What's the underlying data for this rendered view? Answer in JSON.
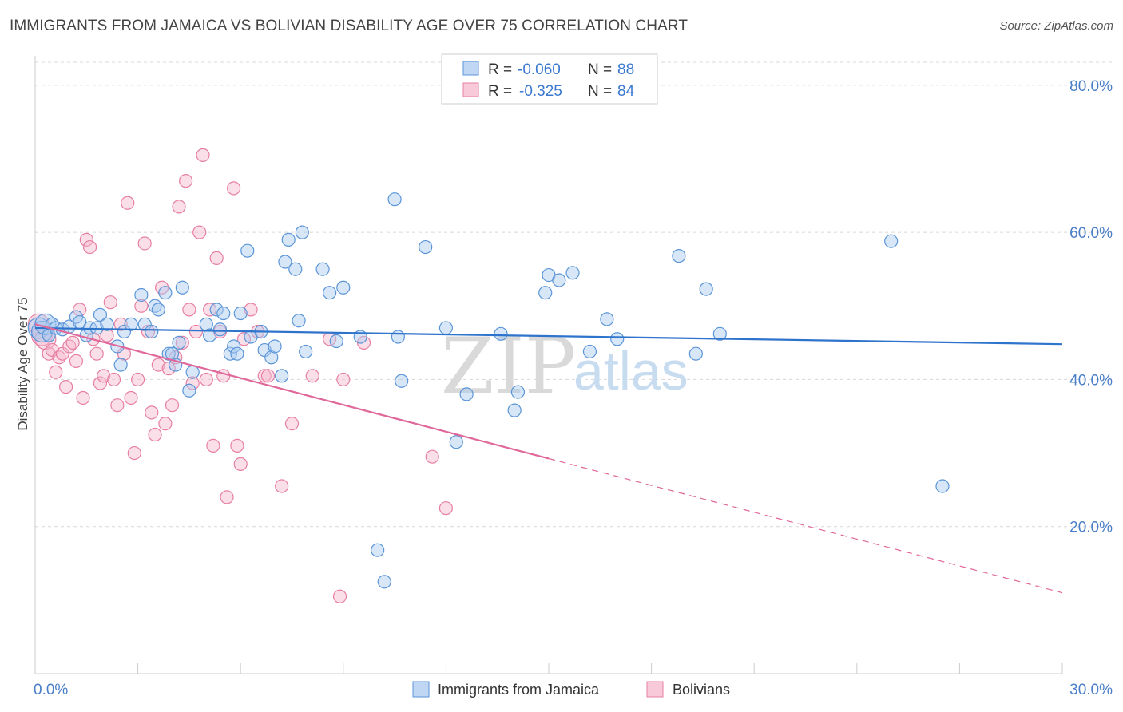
{
  "title": "IMMIGRANTS FROM JAMAICA VS BOLIVIAN DISABILITY AGE OVER 75 CORRELATION CHART",
  "source": "Source: ZipAtlas.com",
  "watermark": {
    "zip": "ZIP",
    "atlas": "atlas"
  },
  "legend": {
    "rows": [
      {
        "r_label": "R =",
        "r_value": "-0.060",
        "n_label": "N =",
        "n_value": "88"
      },
      {
        "r_label": "R =",
        "r_value": "-0.325",
        "n_label": "N =",
        "n_value": "84"
      }
    ]
  },
  "colors": {
    "blue_fill": "#a9c9ef",
    "blue_stroke": "#5b95d8",
    "blue_line": "#2f74cc",
    "pink_fill": "#f6b8cc",
    "pink_stroke": "#e77fa3",
    "pink_line": "#e0679a",
    "grid": "#d8d8d8",
    "tick_text": "#4a7fc8"
  },
  "chart_data": {
    "type": "scatter",
    "title": "IMMIGRANTS FROM JAMAICA VS BOLIVIAN DISABILITY AGE OVER 75 CORRELATION CHART",
    "xlabel": "",
    "ylabel": "Disability Age Over 75",
    "xlim": [
      0,
      30
    ],
    "ylim": [
      0,
      84
    ],
    "x_tick_labels": [
      "0.0%",
      "30.0%"
    ],
    "y_ticks": [
      20,
      40,
      60,
      80
    ],
    "y_tick_labels": [
      "20.0%",
      "40.0%",
      "60.0%",
      "80.0%"
    ],
    "grid": true,
    "legend_position": "top-center",
    "series": [
      {
        "name": "Immigrants from Jamaica",
        "color": "#5b95d8",
        "trend": {
          "x": [
            0,
            30
          ],
          "y": [
            47.0,
            44.8
          ],
          "solid_to": 30
        },
        "points": [
          [
            0.1,
            47.0
          ],
          [
            0.2,
            46.5
          ],
          [
            0.3,
            47.5
          ],
          [
            0.4,
            46.0
          ],
          [
            0.5,
            47.5
          ],
          [
            0.6,
            47.0
          ],
          [
            0.8,
            46.8
          ],
          [
            1.0,
            47.2
          ],
          [
            1.2,
            48.5
          ],
          [
            1.3,
            47.8
          ],
          [
            1.5,
            46.0
          ],
          [
            1.6,
            47.0
          ],
          [
            1.8,
            47.0
          ],
          [
            1.9,
            48.8
          ],
          [
            2.1,
            47.5
          ],
          [
            2.4,
            44.5
          ],
          [
            2.5,
            42.0
          ],
          [
            2.6,
            46.5
          ],
          [
            2.8,
            47.5
          ],
          [
            3.1,
            51.5
          ],
          [
            3.2,
            47.5
          ],
          [
            3.4,
            46.5
          ],
          [
            3.5,
            50.0
          ],
          [
            3.6,
            49.5
          ],
          [
            3.8,
            51.8
          ],
          [
            3.9,
            43.5
          ],
          [
            4.0,
            43.5
          ],
          [
            4.1,
            42.0
          ],
          [
            4.2,
            45.0
          ],
          [
            4.3,
            52.5
          ],
          [
            4.5,
            38.5
          ],
          [
            4.6,
            41.0
          ],
          [
            5.0,
            47.5
          ],
          [
            5.1,
            46.0
          ],
          [
            5.3,
            49.5
          ],
          [
            5.4,
            46.8
          ],
          [
            5.5,
            49.0
          ],
          [
            5.7,
            43.5
          ],
          [
            5.8,
            44.5
          ],
          [
            5.9,
            43.5
          ],
          [
            6.0,
            49.0
          ],
          [
            6.2,
            57.5
          ],
          [
            6.3,
            45.8
          ],
          [
            6.6,
            46.5
          ],
          [
            6.7,
            44.0
          ],
          [
            6.9,
            43.0
          ],
          [
            7.0,
            44.5
          ],
          [
            7.2,
            40.5
          ],
          [
            7.3,
            56.0
          ],
          [
            7.4,
            59.0
          ],
          [
            7.6,
            55.0
          ],
          [
            7.7,
            48.0
          ],
          [
            7.8,
            60.0
          ],
          [
            7.9,
            43.8
          ],
          [
            8.4,
            55.0
          ],
          [
            8.6,
            51.8
          ],
          [
            8.8,
            45.2
          ],
          [
            9.0,
            52.5
          ],
          [
            9.5,
            45.8
          ],
          [
            10.0,
            16.8
          ],
          [
            10.2,
            12.5
          ],
          [
            10.5,
            64.5
          ],
          [
            10.6,
            45.8
          ],
          [
            10.7,
            39.8
          ],
          [
            11.4,
            58.0
          ],
          [
            12.0,
            47.0
          ],
          [
            12.3,
            31.5
          ],
          [
            12.6,
            38.0
          ],
          [
            13.6,
            46.2
          ],
          [
            14.0,
            35.8
          ],
          [
            14.1,
            38.3
          ],
          [
            14.9,
            51.8
          ],
          [
            15.0,
            54.2
          ],
          [
            15.3,
            53.5
          ],
          [
            15.7,
            54.5
          ],
          [
            16.2,
            43.8
          ],
          [
            16.7,
            48.2
          ],
          [
            17.0,
            45.5
          ],
          [
            18.8,
            56.8
          ],
          [
            19.3,
            43.5
          ],
          [
            19.6,
            52.3
          ],
          [
            20.0,
            46.2
          ],
          [
            25.0,
            58.8
          ],
          [
            26.5,
            25.5
          ]
        ]
      },
      {
        "name": "Bolivians",
        "color": "#e77fa3",
        "trend": {
          "x": [
            0,
            30
          ],
          "y": [
            47.5,
            11.0
          ],
          "solid_to": 15
        },
        "points": [
          [
            0.1,
            47.5
          ],
          [
            0.2,
            46.0
          ],
          [
            0.3,
            45.5
          ],
          [
            0.4,
            43.5
          ],
          [
            0.5,
            44.0
          ],
          [
            0.6,
            41.0
          ],
          [
            0.7,
            43.0
          ],
          [
            0.8,
            43.5
          ],
          [
            0.9,
            39.0
          ],
          [
            1.0,
            44.5
          ],
          [
            1.1,
            45.0
          ],
          [
            1.2,
            42.5
          ],
          [
            1.3,
            49.5
          ],
          [
            1.4,
            37.5
          ],
          [
            1.5,
            59.0
          ],
          [
            1.6,
            58.0
          ],
          [
            1.7,
            45.5
          ],
          [
            1.8,
            43.5
          ],
          [
            1.9,
            39.5
          ],
          [
            2.0,
            40.5
          ],
          [
            2.1,
            46.0
          ],
          [
            2.2,
            50.5
          ],
          [
            2.3,
            40.0
          ],
          [
            2.4,
            36.5
          ],
          [
            2.5,
            47.5
          ],
          [
            2.6,
            43.5
          ],
          [
            2.7,
            64.0
          ],
          [
            2.8,
            37.5
          ],
          [
            2.9,
            30.0
          ],
          [
            3.0,
            40.0
          ],
          [
            3.1,
            50.0
          ],
          [
            3.2,
            58.5
          ],
          [
            3.3,
            46.5
          ],
          [
            3.4,
            35.5
          ],
          [
            3.5,
            32.5
          ],
          [
            3.6,
            42.0
          ],
          [
            3.7,
            52.5
          ],
          [
            3.8,
            34.0
          ],
          [
            3.9,
            41.5
          ],
          [
            4.0,
            36.5
          ],
          [
            4.1,
            43.0
          ],
          [
            4.2,
            63.5
          ],
          [
            4.3,
            45.0
          ],
          [
            4.4,
            67.0
          ],
          [
            4.5,
            49.5
          ],
          [
            4.6,
            39.5
          ],
          [
            4.7,
            46.5
          ],
          [
            4.8,
            60.0
          ],
          [
            4.9,
            70.5
          ],
          [
            5.0,
            40.0
          ],
          [
            5.1,
            49.5
          ],
          [
            5.2,
            31.0
          ],
          [
            5.3,
            56.5
          ],
          [
            5.4,
            46.5
          ],
          [
            5.5,
            40.5
          ],
          [
            5.6,
            24.0
          ],
          [
            5.8,
            66.0
          ],
          [
            5.9,
            31.0
          ],
          [
            6.0,
            28.5
          ],
          [
            6.1,
            45.5
          ],
          [
            6.3,
            49.5
          ],
          [
            6.5,
            46.5
          ],
          [
            6.7,
            40.5
          ],
          [
            6.8,
            40.5
          ],
          [
            7.2,
            25.5
          ],
          [
            7.5,
            34.0
          ],
          [
            8.1,
            40.5
          ],
          [
            8.6,
            45.5
          ],
          [
            8.9,
            10.5
          ],
          [
            9.0,
            40.0
          ],
          [
            9.6,
            45.0
          ],
          [
            11.6,
            29.5
          ],
          [
            12.0,
            22.5
          ]
        ]
      }
    ]
  },
  "bottom_legend": [
    {
      "label": "Immigrants from Jamaica"
    },
    {
      "label": "Bolivians"
    }
  ]
}
